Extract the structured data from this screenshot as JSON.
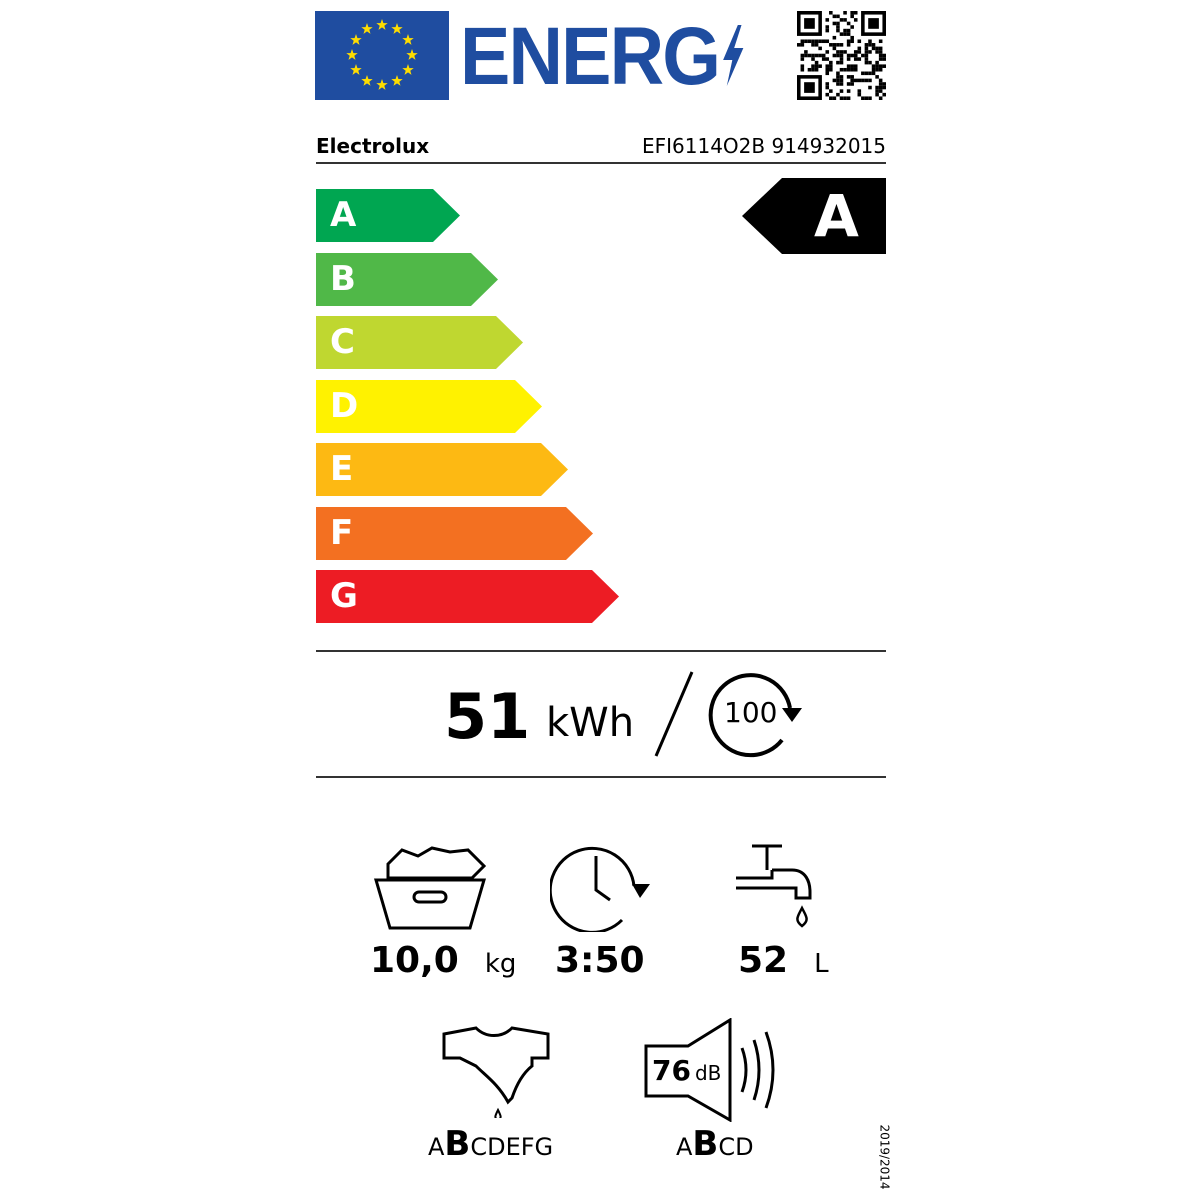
{
  "header": {
    "energy_word": "ENERG",
    "brand": "Electrolux",
    "model": "EFI6114O2B 914932015"
  },
  "scale": {
    "classes": [
      {
        "letter": "A",
        "color": "#00a651"
      },
      {
        "letter": "B",
        "color": "#50b848"
      },
      {
        "letter": "C",
        "color": "#bfd730"
      },
      {
        "letter": "D",
        "color": "#fff200"
      },
      {
        "letter": "E",
        "color": "#fdb913"
      },
      {
        "letter": "F",
        "color": "#f37021"
      },
      {
        "letter": "G",
        "color": "#ed1c24"
      }
    ],
    "rating": "A"
  },
  "consumption": {
    "value": "51",
    "unit": "kWh",
    "cycles": "100"
  },
  "specs": {
    "capacity": {
      "value": "10,0",
      "unit": "kg"
    },
    "duration": {
      "value": "3:50"
    },
    "water": {
      "value": "52",
      "unit": "L"
    },
    "spin_class": {
      "before": "A",
      "selected": "B",
      "after": "CDEFG"
    },
    "noise": {
      "value": "76",
      "unit": "dB",
      "before": "A",
      "selected": "B",
      "after": "CD"
    }
  },
  "regulation": "2019/2014"
}
